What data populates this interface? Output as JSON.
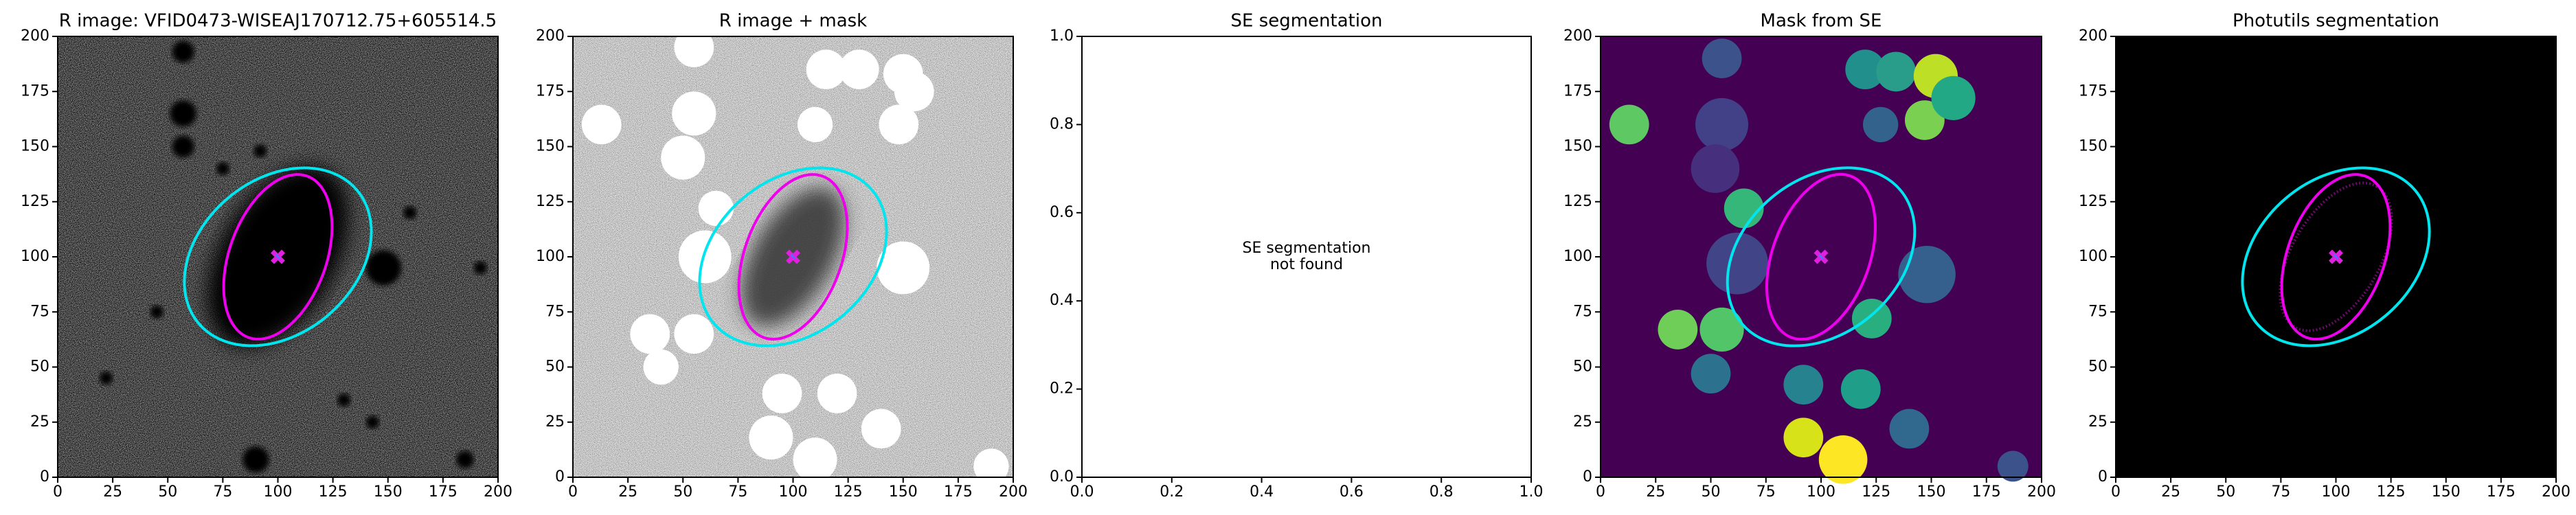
{
  "chart_data": [
    {
      "type": "image",
      "title": "R image: VFID0473-WISEAJ170712.75+605514.5",
      "xlim": [
        0,
        200
      ],
      "ylim": [
        0,
        200
      ],
      "xticks": [
        0,
        25,
        50,
        75,
        100,
        125,
        150,
        175,
        200
      ],
      "yticks": [
        0,
        25,
        50,
        75,
        100,
        125,
        150,
        175,
        200
      ]
    },
    {
      "type": "image",
      "title": "R image + mask",
      "xlim": [
        0,
        200
      ],
      "ylim": [
        0,
        200
      ],
      "xticks": [
        0,
        25,
        50,
        75,
        100,
        125,
        150,
        175,
        200
      ],
      "yticks": [
        0,
        25,
        50,
        75,
        100,
        125,
        150,
        175,
        200
      ]
    },
    {
      "type": "empty",
      "title": "SE segmentation",
      "annotation": [
        "SE segmentation",
        "not found"
      ],
      "xlim": [
        0,
        1
      ],
      "ylim": [
        0,
        1
      ],
      "xticks": [
        {
          "value": 0,
          "label": "0.0"
        },
        0.2,
        0.4,
        0.6,
        0.8,
        {
          "value": 1,
          "label": "1.0"
        }
      ],
      "yticks": [
        {
          "value": 0,
          "label": "0.0"
        },
        0.2,
        0.4,
        0.6,
        0.8,
        {
          "value": 1,
          "label": "1.0"
        }
      ]
    },
    {
      "type": "image",
      "title": "Mask from SE",
      "xlim": [
        0,
        200
      ],
      "ylim": [
        0,
        200
      ],
      "xticks": [
        0,
        25,
        50,
        75,
        100,
        125,
        150,
        175,
        200
      ],
      "yticks": [
        0,
        25,
        50,
        75,
        100,
        125,
        150,
        175,
        200
      ]
    },
    {
      "type": "image",
      "title": "Photutils segmentation",
      "xlim": [
        0,
        200
      ],
      "ylim": [
        0,
        200
      ],
      "xticks": [
        0,
        25,
        50,
        75,
        100,
        125,
        150,
        175,
        200
      ],
      "yticks": [
        0,
        25,
        50,
        75,
        100,
        125,
        150,
        175,
        200
      ]
    }
  ]
}
